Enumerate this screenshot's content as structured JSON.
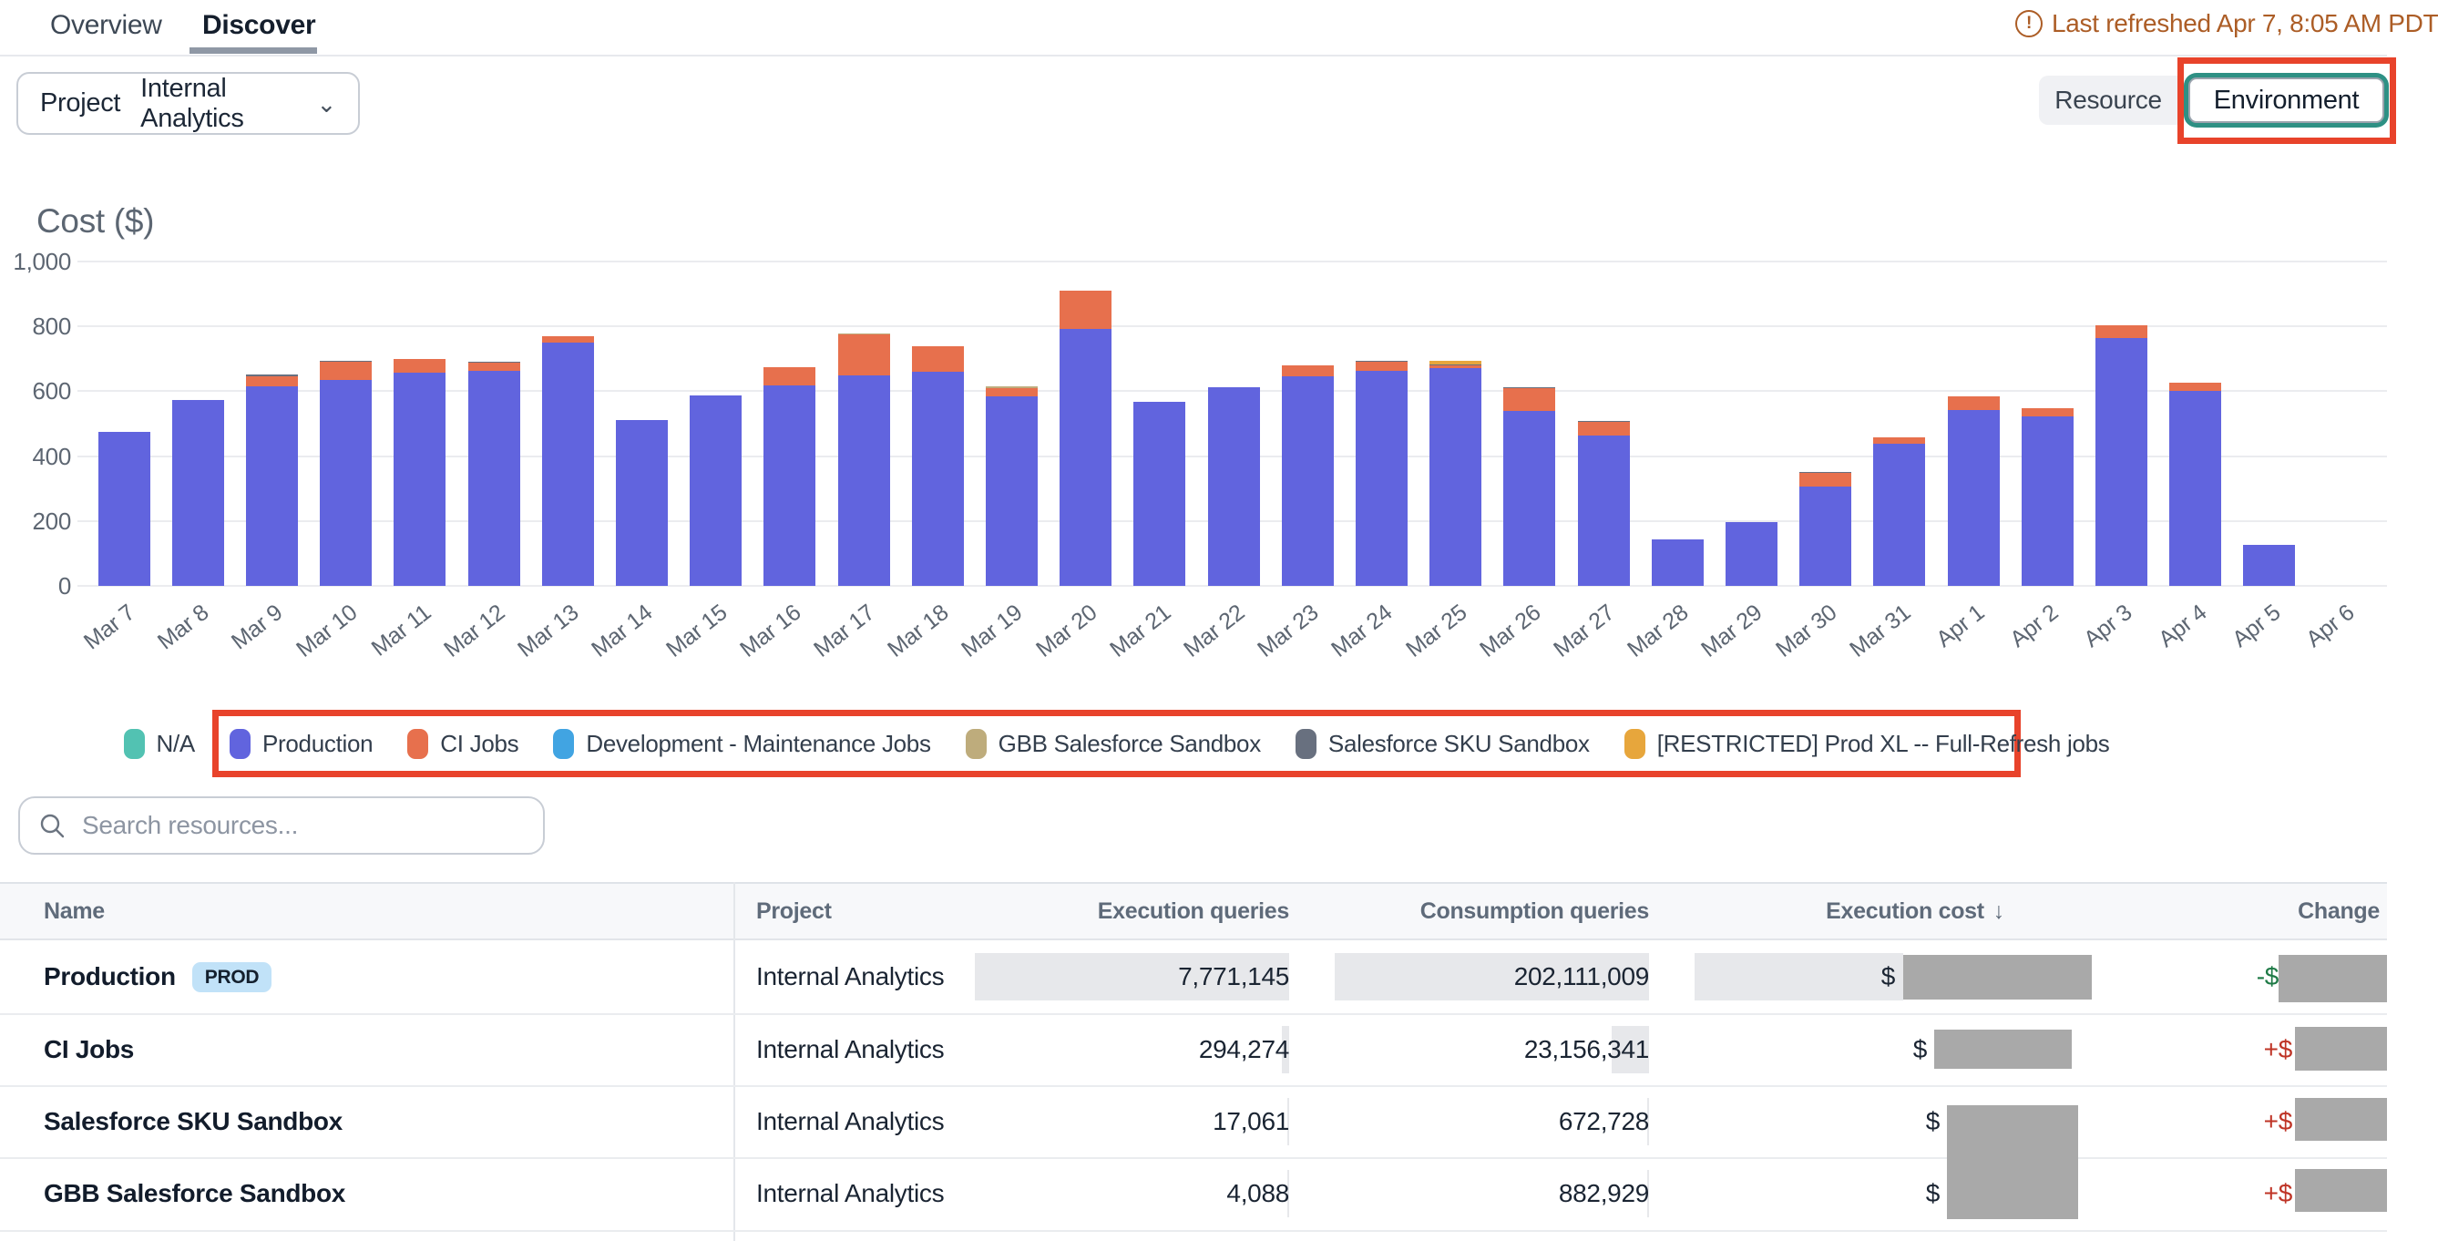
{
  "tabs": {
    "items": [
      {
        "label": "Overview",
        "active": false
      },
      {
        "label": "Discover",
        "active": true
      }
    ]
  },
  "header": {
    "last_refreshed": "Last refreshed Apr 7, 8:05 AM PDT"
  },
  "filters": {
    "project_label": "Project",
    "project_value": "Internal Analytics"
  },
  "view_toggle": {
    "resource_label": "Resource",
    "environment_label": "Environment",
    "selected": "Environment"
  },
  "annotations": {
    "highlight_color": "#E8432B",
    "targets": [
      "environment-toggle-button",
      "chart-legend"
    ]
  },
  "chart_data": {
    "type": "bar",
    "stacked": true,
    "title": "Cost ($)",
    "ylim": [
      0,
      1000
    ],
    "yticks": [
      0,
      200,
      400,
      600,
      800,
      1000
    ],
    "grid": true,
    "legend_position": "bottom",
    "categories": [
      "Mar 7",
      "Mar 8",
      "Mar 9",
      "Mar 10",
      "Mar 11",
      "Mar 12",
      "Mar 13",
      "Mar 14",
      "Mar 15",
      "Mar 16",
      "Mar 17",
      "Mar 18",
      "Mar 19",
      "Mar 20",
      "Mar 21",
      "Mar 22",
      "Mar 23",
      "Mar 24",
      "Mar 25",
      "Mar 26",
      "Mar 27",
      "Mar 28",
      "Mar 29",
      "Mar 30",
      "Mar 31",
      "Apr 1",
      "Apr 2",
      "Apr 3",
      "Apr 4",
      "Apr 5",
      "Apr 6"
    ],
    "series": [
      {
        "name": "Production",
        "color": "#6164DE",
        "values": [
          475,
          573,
          615,
          635,
          657,
          663,
          750,
          511,
          587,
          619,
          650,
          661,
          584,
          792,
          568,
          613,
          646,
          663,
          671,
          539,
          464,
          144,
          196,
          306,
          439,
          543,
          522,
          765,
          601,
          126,
          0
        ]
      },
      {
        "name": "CI Jobs",
        "color": "#E7704D",
        "values": [
          0,
          0,
          30,
          56,
          42,
          25,
          20,
          0,
          0,
          56,
          126,
          78,
          26,
          118,
          0,
          0,
          34,
          28,
          8,
          71,
          42,
          0,
          0,
          42,
          19,
          41,
          27,
          38,
          26,
          0,
          0
        ]
      },
      {
        "name": "Salesforce SKU Sandbox",
        "color": "#68707F",
        "values": [
          0,
          0,
          8,
          3,
          0,
          3,
          0,
          0,
          0,
          0,
          0,
          0,
          0,
          0,
          0,
          0,
          0,
          2,
          4,
          2,
          2,
          0,
          0,
          2,
          0,
          0,
          0,
          0,
          0,
          0,
          0
        ]
      },
      {
        "name": "GBB Salesforce Sandbox",
        "color": "#BEAC7C",
        "values": [
          0,
          0,
          0,
          0,
          0,
          0,
          0,
          0,
          0,
          0,
          3,
          0,
          4,
          0,
          0,
          0,
          0,
          0,
          0,
          0,
          0,
          0,
          0,
          0,
          0,
          0,
          0,
          0,
          0,
          0,
          0
        ]
      },
      {
        "name": "[RESTRICTED] Prod XL -- Full-Refresh jobs",
        "color": "#E7A63C",
        "values": [
          0,
          0,
          0,
          0,
          0,
          0,
          0,
          0,
          0,
          0,
          0,
          0,
          0,
          0,
          0,
          0,
          0,
          0,
          10,
          0,
          0,
          0,
          0,
          0,
          0,
          0,
          0,
          0,
          0,
          0,
          0
        ]
      }
    ]
  },
  "legend": [
    {
      "label": "N/A",
      "color": "#52C2B2"
    },
    {
      "label": "Production",
      "color": "#6164DE"
    },
    {
      "label": "CI Jobs",
      "color": "#E7704D"
    },
    {
      "label": "Development - Maintenance Jobs",
      "color": "#41A4E2"
    },
    {
      "label": "GBB Salesforce Sandbox",
      "color": "#BEAC7C"
    },
    {
      "label": "Salesforce SKU Sandbox",
      "color": "#68707F"
    },
    {
      "label": "[RESTRICTED] Prod XL -- Full-Refresh jobs",
      "color": "#E7A63C"
    }
  ],
  "search": {
    "placeholder": "Search resources..."
  },
  "table": {
    "columns": [
      {
        "label": "Name"
      },
      {
        "label": "Project"
      },
      {
        "label": "Execution queries"
      },
      {
        "label": "Consumption queries"
      },
      {
        "label": "Execution cost",
        "sorted": "desc",
        "sort_icon": "↓"
      },
      {
        "label": "Change"
      }
    ],
    "rows": [
      {
        "name": "Production",
        "badge": "PROD",
        "project": "Internal Analytics",
        "execution_queries": "7,771,145",
        "consumption_queries": "202,111,009",
        "execution_cost_prefix": "$",
        "execution_cost_redacted": true,
        "change_prefix": "-$",
        "change_direction": "down",
        "change_redacted": true
      },
      {
        "name": "CI Jobs",
        "badge": null,
        "project": "Internal Analytics",
        "execution_queries": "294,274",
        "consumption_queries": "23,156,341",
        "execution_cost_prefix": "$",
        "execution_cost_redacted": true,
        "change_prefix": "+$",
        "change_direction": "up",
        "change_redacted": true
      },
      {
        "name": "Salesforce SKU Sandbox",
        "badge": null,
        "project": "Internal Analytics",
        "execution_queries": "17,061",
        "consumption_queries": "672,728",
        "execution_cost_prefix": "$",
        "execution_cost_redacted": true,
        "change_prefix": "+$",
        "change_direction": "up",
        "change_redacted": true
      },
      {
        "name": "GBB Salesforce Sandbox",
        "badge": null,
        "project": "Internal Analytics",
        "execution_queries": "4,088",
        "consumption_queries": "882,929",
        "execution_cost_prefix": "$",
        "execution_cost_redacted": true,
        "change_prefix": "+$",
        "change_direction": "up",
        "change_redacted": true
      }
    ]
  }
}
